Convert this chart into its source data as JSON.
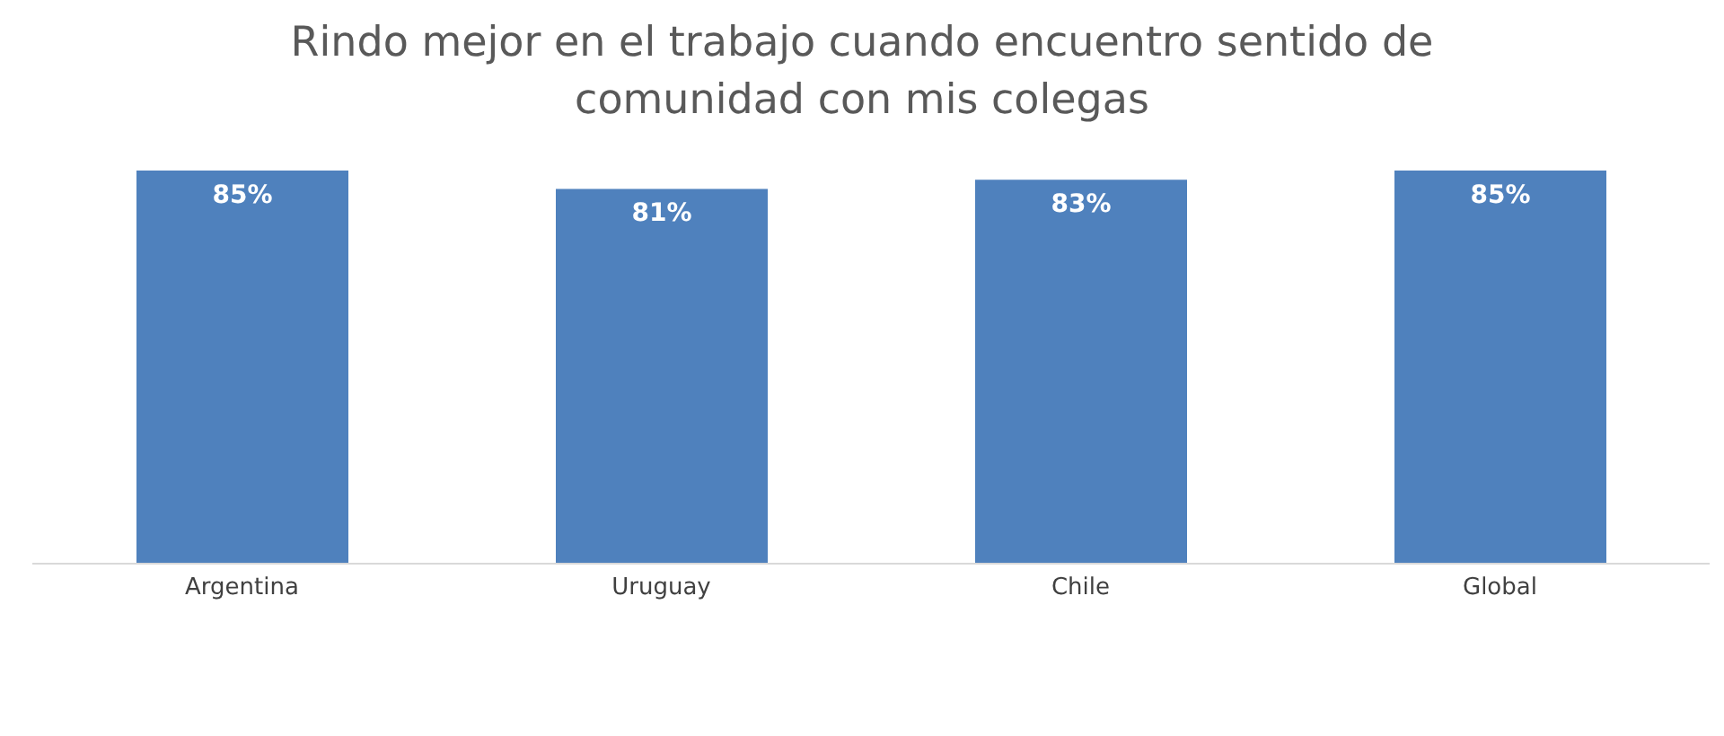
{
  "chart_data": {
    "type": "bar",
    "title": "Rindo mejor en el trabajo cuando encuentro sentido de comunidad con mis colegas",
    "categories": [
      "Argentina",
      "Uruguay",
      "Chile",
      "Global"
    ],
    "values": [
      85,
      81,
      83,
      85
    ],
    "color": "#4f81bd",
    "value_labels": [
      "85%",
      "81%",
      "83%",
      "85%"
    ],
    "tick_labels": "x"
  }
}
